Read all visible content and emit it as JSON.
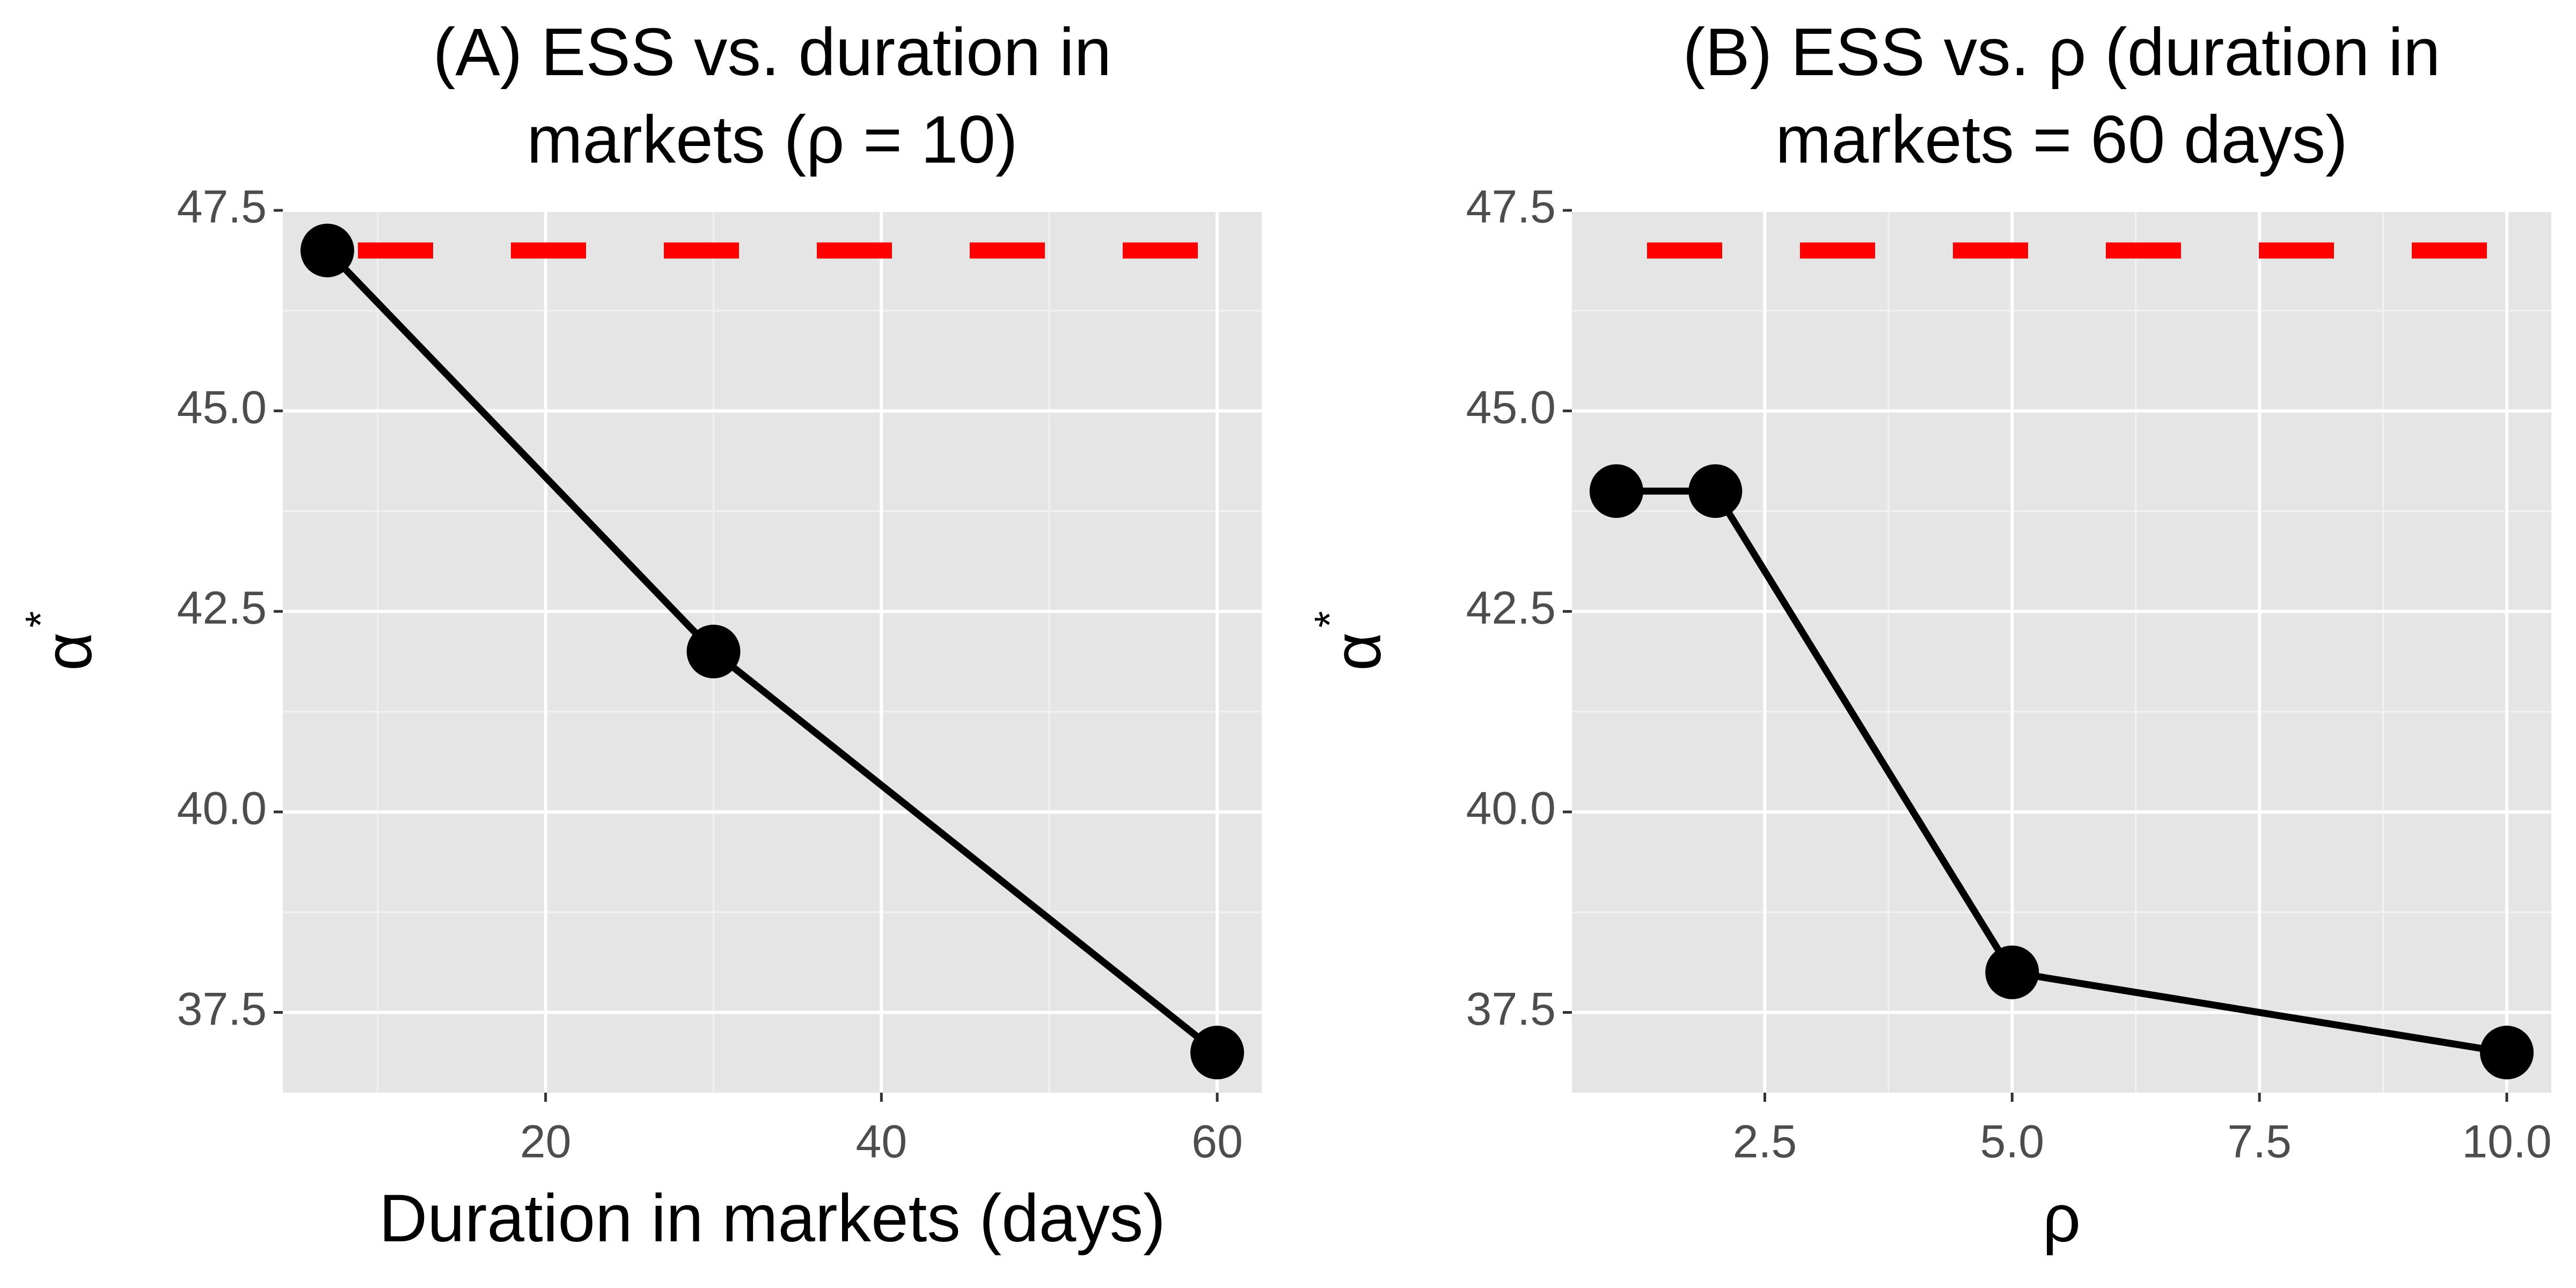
{
  "chart_data": [
    {
      "type": "line",
      "title": [
        "(A) ESS vs. duration in",
        "markets  (ρ = 10)"
      ],
      "xlabel": "Duration in markets (days)",
      "ylabel": "α",
      "ylabel_sup": "*",
      "x": [
        7,
        30,
        60
      ],
      "values": [
        47,
        42,
        37
      ],
      "color": "#000000",
      "hline": 47,
      "hline_color": "#ff0000",
      "xlim": [
        4.35,
        62.65
      ],
      "xticks": [
        20,
        40,
        60
      ],
      "minor_xticks": [
        10,
        30,
        50
      ],
      "ylim": [
        36.5,
        47.5
      ],
      "yticks": [
        {
          "value": 37.5,
          "label": "37.5"
        },
        {
          "value": 40,
          "label": "40.0"
        },
        {
          "value": 42.5,
          "label": "42.5"
        },
        {
          "value": 45,
          "label": "45.0"
        },
        {
          "value": 47.5,
          "label": "47.5"
        }
      ],
      "minor_yticks": [
        38.75,
        41.25,
        43.75,
        46.25
      ],
      "grid": true
    },
    {
      "type": "line",
      "title": [
        "(B) ESS vs.  ρ (duration in",
        "markets = 60 days)"
      ],
      "xlabel": "ρ",
      "ylabel": "α",
      "ylabel_sup": "*",
      "x": [
        1,
        2,
        5,
        10
      ],
      "values": [
        44,
        44,
        38,
        37
      ],
      "color": "#000000",
      "hline": 47,
      "hline_color": "#ff0000",
      "xlim": [
        0.55,
        10.45
      ],
      "xticks": [
        2.5,
        {
          "value": 5,
          "label": "5.0"
        },
        7.5,
        {
          "value": 10,
          "label": "10.0"
        }
      ],
      "minor_xticks": [
        3.75,
        6.25,
        8.75
      ],
      "ylim": [
        36.5,
        47.5
      ],
      "yticks": [
        {
          "value": 37.5,
          "label": "37.5"
        },
        {
          "value": 40,
          "label": "40.0"
        },
        {
          "value": 42.5,
          "label": "42.5"
        },
        {
          "value": 45,
          "label": "45.0"
        },
        {
          "value": 47.5,
          "label": "47.5"
        }
      ],
      "minor_yticks": [
        38.75,
        41.25,
        43.75,
        46.25
      ],
      "grid": true
    }
  ]
}
